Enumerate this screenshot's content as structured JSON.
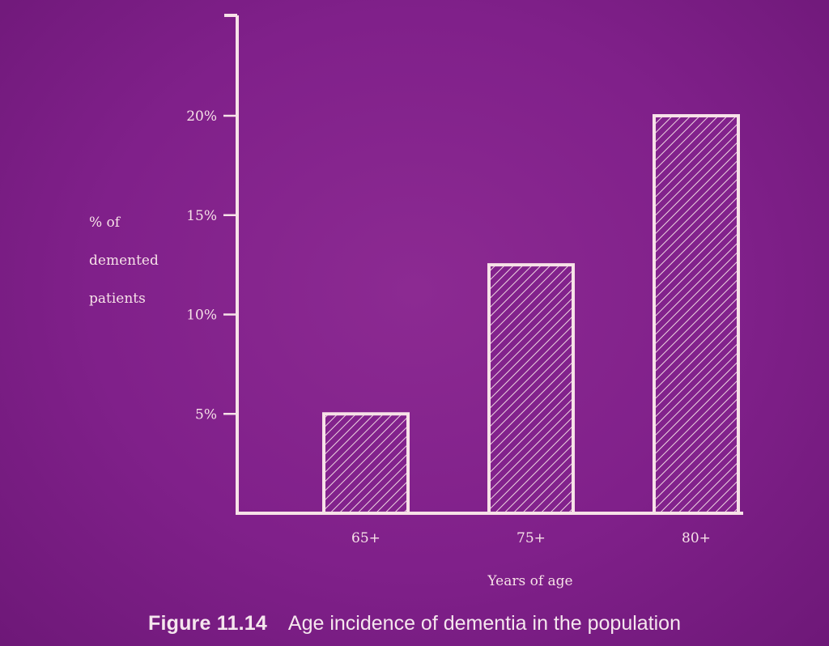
{
  "chart_data": {
    "type": "bar",
    "categories": [
      "65+",
      "75+",
      "80+"
    ],
    "values": [
      5,
      12.5,
      20
    ],
    "ylabel_lines": [
      "% of",
      "demented",
      "patients"
    ],
    "xlabel": "Years of age",
    "yticks": [
      5,
      10,
      15,
      20
    ],
    "ytick_labels": [
      "5%",
      "10%",
      "15%",
      "20%"
    ],
    "ylim": [
      0,
      25
    ],
    "grid": false,
    "bar_fill": "hatched"
  },
  "caption": {
    "figure_number": "Figure 11.14",
    "text": "Age incidence of dementia in the population"
  },
  "colors": {
    "background": "#80208a",
    "foreground": "#f7e2e8"
  }
}
